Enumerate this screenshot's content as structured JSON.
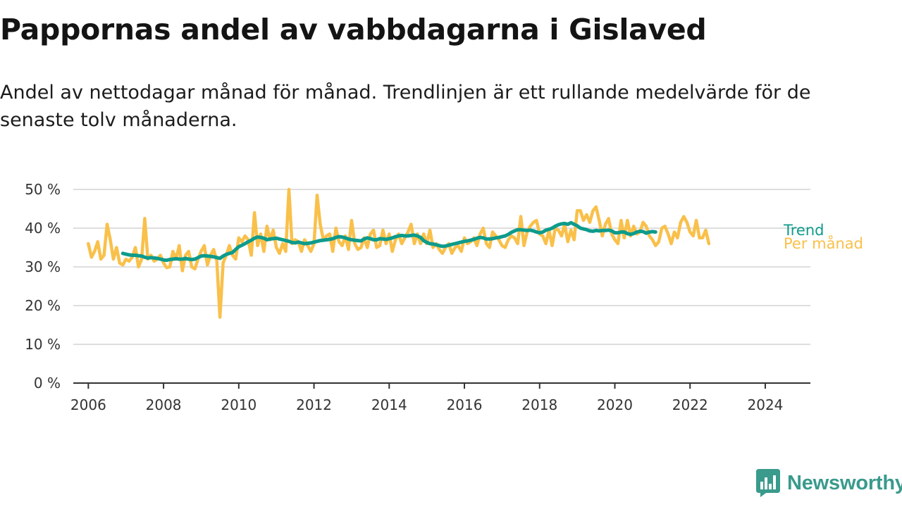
{
  "header": {
    "title": "Pappornas andel av vabbdagarna i Gislaved",
    "subtitle": "Andel av nettodagar månad för månad. Trendlinjen är ett rullande medelvärde för de senaste tolv månaderna."
  },
  "brand": {
    "name": "Newsworthy",
    "color": "#3a9a8c"
  },
  "colors": {
    "per_manad": "#f9c04a",
    "trend": "#0e9b8c",
    "grid": "#dedede",
    "axis": "#333333"
  },
  "chart_data": {
    "type": "line",
    "x_unit": "år",
    "y_unit": "%",
    "ylim": [
      0,
      50
    ],
    "xlim": [
      2005.6,
      2025.2
    ],
    "y_ticks": [
      {
        "value": 0,
        "label": "0 %"
      },
      {
        "value": 10,
        "label": "10 %"
      },
      {
        "value": 20,
        "label": "20 %"
      },
      {
        "value": 30,
        "label": "30 %"
      },
      {
        "value": 40,
        "label": "40 %"
      },
      {
        "value": 50,
        "label": "50 %"
      }
    ],
    "x_ticks": [
      {
        "value": 2006,
        "label": "2006"
      },
      {
        "value": 2008,
        "label": "2008"
      },
      {
        "value": 2010,
        "label": "2010"
      },
      {
        "value": 2012,
        "label": "2012"
      },
      {
        "value": 2014,
        "label": "2014"
      },
      {
        "value": 2016,
        "label": "2016"
      },
      {
        "value": 2018,
        "label": "2018"
      },
      {
        "value": 2020,
        "label": "2020"
      },
      {
        "value": 2022,
        "label": "2022"
      },
      {
        "value": 2024,
        "label": "2024"
      }
    ],
    "grid": true,
    "legend": "line-end labels",
    "series": [
      {
        "name": "Per månad",
        "color": "#f9c04a",
        "start_year": 2006,
        "values": [
          36,
          32.5,
          34,
          36.5,
          32,
          33,
          41,
          37,
          32,
          35,
          31,
          30.5,
          32,
          31.5,
          32.5,
          35,
          30,
          32,
          42.5,
          32,
          33,
          31.5,
          32,
          33,
          31,
          29.8,
          30,
          34,
          32,
          35.5,
          29,
          33,
          34,
          30,
          29.5,
          32,
          34,
          35.5,
          30.5,
          33,
          34.5,
          31.5,
          17,
          31,
          33,
          35.5,
          33,
          32,
          37.5,
          36.5,
          38,
          37,
          33,
          44,
          35.5,
          38.5,
          34,
          40.5,
          37,
          39.5,
          35,
          33.5,
          36,
          34,
          50,
          36,
          37,
          36.5,
          34,
          37,
          35.5,
          34,
          36,
          48.5,
          41,
          37,
          38,
          38.5,
          34,
          40,
          36.5,
          35.5,
          38,
          34.5,
          42,
          36,
          34.5,
          35,
          37.5,
          35,
          38.5,
          39.5,
          35,
          35.5,
          39.5,
          36,
          38.5,
          34,
          37,
          38.5,
          36,
          37.5,
          39,
          41,
          36,
          38.5,
          36,
          38.5,
          36,
          39.5,
          35,
          36,
          34.5,
          33.5,
          35,
          36,
          33.5,
          35,
          35.5,
          34,
          37.5,
          36,
          36.5,
          37.5,
          35.5,
          38.5,
          40,
          36,
          35,
          39,
          38,
          37,
          35.5,
          35,
          37,
          38,
          37.5,
          36,
          43,
          35.5,
          39,
          40.5,
          41.5,
          42,
          38.5,
          38,
          36,
          39.5,
          35.5,
          40,
          39.5,
          38,
          41,
          36.5,
          39.5,
          37,
          44.5,
          44.5,
          42,
          43.5,
          41.5,
          44.5,
          45.5,
          42,
          38,
          41,
          42.5,
          38.5,
          37,
          36,
          42,
          37.5,
          42,
          38,
          40.5,
          38.5,
          39,
          41.5,
          40.5,
          38,
          37,
          35.5,
          36.5,
          40,
          40.5,
          38.5,
          36,
          39,
          37.5,
          41.5,
          43,
          41.5,
          39,
          38,
          42,
          37.5,
          37.5,
          39.5,
          36
        ]
      },
      {
        "name": "Trend",
        "color": "#0e9b8c",
        "start_year": 2006.917,
        "values": [
          33.5,
          33.3,
          33.1,
          33,
          33,
          32.9,
          32.8,
          32.5,
          32.3,
          32.4,
          32.3,
          32.2,
          32,
          31.8,
          31.7,
          31.9,
          32,
          32.1,
          32,
          32,
          32.2,
          32,
          31.9,
          32,
          32.4,
          32.8,
          32.9,
          32.8,
          32.7,
          32.6,
          32.4,
          32.2,
          32.8,
          33.2,
          33.5,
          33.7,
          34.5,
          35.2,
          35.6,
          36,
          36.5,
          36.9,
          37.4,
          37.7,
          37.6,
          37.4,
          37,
          37.2,
          37.3,
          37.4,
          37.2,
          37,
          36.8,
          36.6,
          36.3,
          36.2,
          36.4,
          36.2,
          36,
          36.1,
          36.2,
          36.4,
          36.6,
          36.8,
          36.9,
          37,
          37.1,
          37.3,
          37.6,
          37.8,
          37.7,
          37.5,
          37.2,
          37,
          36.9,
          36.8,
          36.7,
          37.2,
          37.5,
          37.3,
          37,
          37,
          37.3,
          37.2,
          37.1,
          37.3,
          37.5,
          37.8,
          38,
          38.1,
          38,
          38,
          38.1,
          38.2,
          38,
          37.6,
          36.8,
          36.3,
          36,
          35.9,
          35.7,
          35.5,
          35.3,
          35.4,
          35.6,
          35.8,
          36,
          36.2,
          36.4,
          36.6,
          36.7,
          36.9,
          37.1,
          37.4,
          37.6,
          37.5,
          37.2,
          37.2,
          37.3,
          37.5,
          37.6,
          37.8,
          38,
          38.4,
          38.9,
          39.3,
          39.6,
          39.6,
          39.5,
          39.4,
          39.5,
          39.3,
          39,
          38.8,
          39,
          39.5,
          39.7,
          40,
          40.5,
          40.9,
          41.1,
          41.2,
          41,
          41.4,
          41,
          40.6,
          40,
          39.8,
          39.6,
          39.3,
          39.2,
          39.4,
          39.3,
          39.4,
          39.4,
          39.5,
          39.3,
          38.8,
          38.8,
          39,
          39,
          38.6,
          38.4,
          38.6,
          39,
          39.2,
          39.1,
          38.7,
          39,
          39.1,
          39
        ]
      }
    ]
  }
}
